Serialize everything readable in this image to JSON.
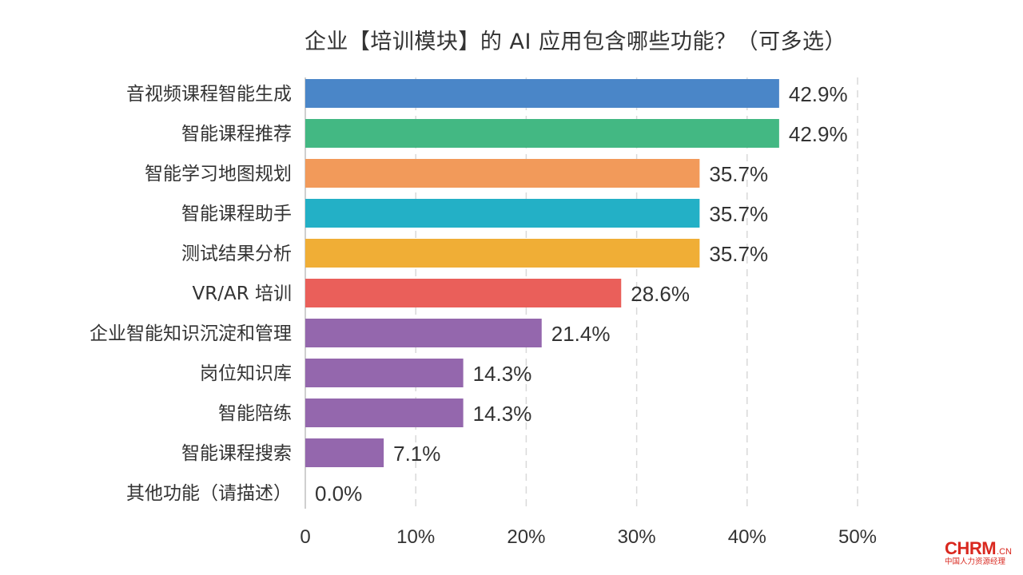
{
  "chart_data": {
    "type": "bar",
    "orientation": "horizontal",
    "title": "企业【培训模块】的 AI 应用包含哪些功能？（可多选）",
    "categories": [
      "音视频课程智能生成",
      "智能课程推荐",
      "智能学习地图规划",
      "智能课程助手",
      "测试结果分析",
      "VR/AR 培训",
      "企业智能知识沉淀和管理",
      "岗位知识库",
      "智能陪练",
      "智能课程搜索",
      "其他功能（请描述）"
    ],
    "values": [
      42.9,
      42.9,
      35.7,
      35.7,
      35.7,
      28.6,
      21.4,
      14.3,
      14.3,
      7.1,
      0.0
    ],
    "value_labels": [
      "42.9%",
      "42.9%",
      "35.7%",
      "35.7%",
      "35.7%",
      "28.6%",
      "21.4%",
      "14.3%",
      "14.3%",
      "7.1%",
      "0.0%"
    ],
    "colors": [
      "#4a86c8",
      "#43b883",
      "#f29a5a",
      "#23b0c6",
      "#f0ae36",
      "#ea5f5a",
      "#9467ad",
      "#9467ad",
      "#9467ad",
      "#9467ad",
      "#9467ad"
    ],
    "xlim": [
      0,
      50
    ],
    "xticks": [
      0,
      10,
      20,
      30,
      40,
      50
    ],
    "xtick_labels": [
      "0",
      "10%",
      "20%",
      "30%",
      "40%",
      "50%"
    ],
    "grid": "vertical dashed",
    "legend": "none"
  },
  "logo": {
    "main": "CHRM",
    "suffix": ".CN",
    "tagline": "中国人力资源经理"
  }
}
